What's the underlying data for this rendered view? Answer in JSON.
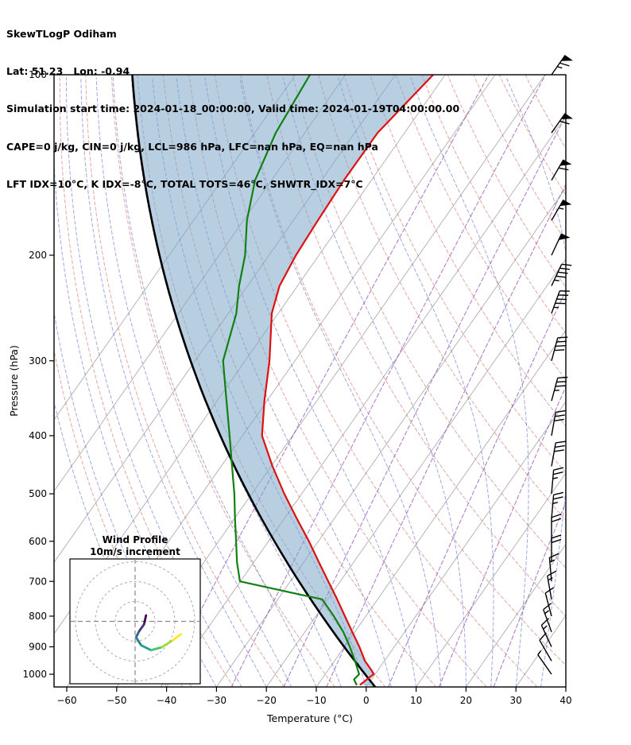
{
  "header": {
    "line1": "SkewTLogP Odiham",
    "line2": "Lat: 51.23   Lon: -0.94",
    "line3": "Simulation start time: 2024-01-18_00:00:00, Valid time: 2024-01-19T04:00:00.00",
    "line4": "CAPE=0 j/kg, CIN=0 j/kg, LCL=986 hPa, LFC=nan hPa, EQ=nan hPa",
    "line5": "LFT IDX=10°C, K IDX=-8°C, TOTAL TOTS=46°C, SHWTR_IDX=7°C"
  },
  "axes": {
    "x_label": "Temperature (°C)",
    "y_label": "Pressure (hPa)",
    "pressure_ticks": [
      100,
      200,
      300,
      400,
      500,
      600,
      700,
      800,
      900,
      1000
    ],
    "temp_ticks": [
      -60,
      -50,
      -40,
      -30,
      -20,
      -10,
      0,
      10,
      20,
      30,
      40
    ]
  },
  "inset": {
    "title": "Wind Profile",
    "subtitle": "10m/s increment"
  },
  "colors": {
    "fill": "#7ba7c9",
    "temperature": "#e01010",
    "dewpoint": "#128012",
    "parcel": "#000000",
    "isotherm": "#b5b5b5",
    "dry_adiabat": "#cd5c5c",
    "moist_adiabat": "#4650c8",
    "mixing_ratio": "#7d2daa",
    "barb": "#000000"
  },
  "chart_data": {
    "type": "skewt-logp",
    "station": "Odiham",
    "lat": 51.23,
    "lon": -0.94,
    "pressure_range_hPa": [
      100,
      1050
    ],
    "temperature_axis_C": [
      -60,
      40
    ],
    "indices": {
      "CAPE_jkg": 0,
      "CIN_jkg": 0,
      "LCL_hPa": 986,
      "LFC_hPa": "nan",
      "EQ_hPa": "nan",
      "LFT_IDX_C": 10,
      "K_IDX_C": -8,
      "TOTAL_TOTS_C": 46,
      "SHWTR_IDX_C": 7
    },
    "temperature_profile": {
      "pressure": [
        1040,
        1000,
        986,
        950,
        900,
        850,
        800,
        750,
        700,
        650,
        600,
        550,
        500,
        450,
        400,
        350,
        300,
        250,
        225,
        200,
        175,
        150,
        125,
        100
      ],
      "temperature": [
        -1.5,
        -0.3,
        -1.2,
        -3.9,
        -7,
        -10.5,
        -14.2,
        -18.1,
        -22.4,
        -27,
        -31.9,
        -37.5,
        -43.5,
        -49.7,
        -56.1,
        -60.5,
        -65.1,
        -71.3,
        -73.6,
        -74.6,
        -75.1,
        -75.5,
        -75.4,
        -72.4
      ]
    },
    "dewpoint_profile": {
      "pressure": [
        1040,
        1020,
        1000,
        950,
        900,
        850,
        800,
        750,
        700,
        650,
        600,
        550,
        500,
        450,
        400,
        350,
        300,
        250,
        225,
        200,
        175,
        150,
        125,
        100
      ],
      "dewpoint": [
        -2.3,
        -3.5,
        -3.2,
        -5.9,
        -8.9,
        -12.3,
        -16.4,
        -21.1,
        -40.1,
        -43.4,
        -46.5,
        -49.9,
        -53.5,
        -57.8,
        -62.6,
        -68.1,
        -74.4,
        -78.4,
        -81.7,
        -84.8,
        -89.3,
        -93.3,
        -95.8,
        -97.1
      ]
    },
    "parcel_reference": {
      "type": "dry_adiabat",
      "theta_C": -2
    },
    "isotherms_C": [
      -100,
      -90,
      -80,
      -70,
      -60,
      -50,
      -40,
      -30,
      -20,
      -10,
      0,
      10,
      20,
      30,
      40
    ],
    "dry_adiabats_theta_C": [
      -40,
      -30,
      -20,
      -10,
      0,
      10,
      20,
      30,
      40,
      50,
      60,
      70,
      80,
      90,
      100,
      110,
      120,
      130,
      140,
      150
    ],
    "moist_adiabats_T0_C": [
      -40,
      -35,
      -30,
      -25,
      -20,
      -15,
      -10,
      -5,
      0,
      5,
      10,
      15,
      20,
      25,
      30,
      35,
      40
    ],
    "mixing_ratio_g_kg": [
      0.1,
      0.4,
      1,
      2,
      5,
      10,
      20
    ],
    "wind_barbs": [
      {
        "p": 100,
        "speed": 65,
        "dir": 35
      },
      {
        "p": 125,
        "speed": 60,
        "dir": 35
      },
      {
        "p": 150,
        "speed": 60,
        "dir": 30
      },
      {
        "p": 175,
        "speed": 55,
        "dir": 30
      },
      {
        "p": 200,
        "speed": 50,
        "dir": 25
      },
      {
        "p": 225,
        "speed": 45,
        "dir": 25
      },
      {
        "p": 250,
        "speed": 45,
        "dir": 20
      },
      {
        "p": 300,
        "speed": 40,
        "dir": 15
      },
      {
        "p": 350,
        "speed": 35,
        "dir": 15
      },
      {
        "p": 400,
        "speed": 30,
        "dir": 10
      },
      {
        "p": 450,
        "speed": 30,
        "dir": 10
      },
      {
        "p": 500,
        "speed": 25,
        "dir": 5
      },
      {
        "p": 550,
        "speed": 25,
        "dir": 5
      },
      {
        "p": 600,
        "speed": 20,
        "dir": 0
      },
      {
        "p": 650,
        "speed": 20,
        "dir": 0
      },
      {
        "p": 700,
        "speed": 15,
        "dir": 355
      },
      {
        "p": 750,
        "speed": 15,
        "dir": 350
      },
      {
        "p": 800,
        "speed": 10,
        "dir": 345
      },
      {
        "p": 850,
        "speed": 15,
        "dir": 340
      },
      {
        "p": 900,
        "speed": 15,
        "dir": 335
      },
      {
        "p": 950,
        "speed": 10,
        "dir": 330
      },
      {
        "p": 1000,
        "speed": 5,
        "dir": 325
      }
    ],
    "hodograph": {
      "units": "m/s",
      "ring_increment_ms": 10,
      "rings_ms": [
        10,
        20,
        30
      ],
      "trace": [
        {
          "u": 5.5,
          "v": 3
        },
        {
          "u": 4.5,
          "v": -1.5
        },
        {
          "u": 2,
          "v": -5
        },
        {
          "u": 0.5,
          "v": -8
        },
        {
          "u": 3,
          "v": -12
        },
        {
          "u": 8,
          "v": -14.5
        },
        {
          "u": 13.5,
          "v": -13
        },
        {
          "u": 19,
          "v": -9.5
        },
        {
          "u": 23,
          "v": -6.5
        }
      ],
      "segment_colors": [
        "#440154",
        "#46327e",
        "#365c8d",
        "#277f8e",
        "#1fa187",
        "#4ac16d",
        "#a0da39",
        "#fde725"
      ]
    }
  }
}
